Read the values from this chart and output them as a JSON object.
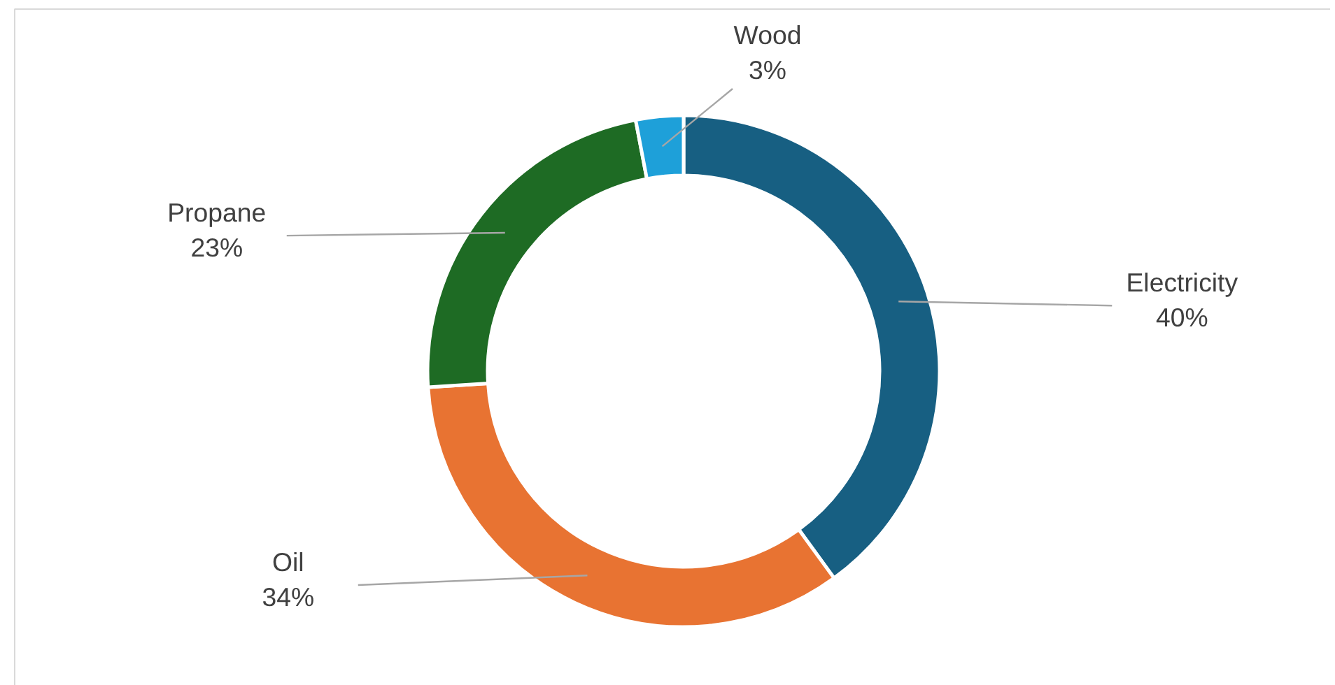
{
  "chart_data": {
    "type": "donut",
    "categories": [
      "Electricity",
      "Oil",
      "Propane",
      "Wood"
    ],
    "values": [
      40,
      34,
      23,
      3
    ],
    "colors": [
      "#175f82",
      "#e87332",
      "#1e6b24",
      "#1ea0d9"
    ],
    "value_labels": [
      "40%",
      "34%",
      "23%",
      "3%"
    ]
  }
}
